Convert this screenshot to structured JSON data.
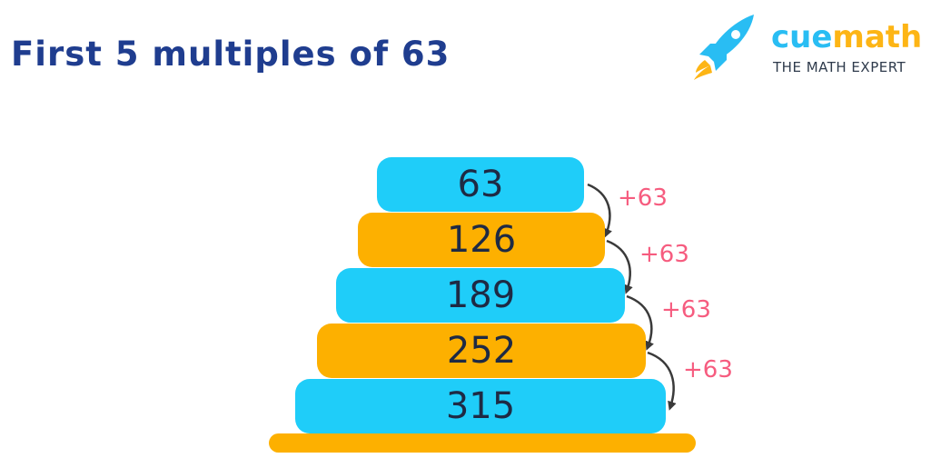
{
  "title": "First 5 multiples of 63",
  "logo": {
    "brand_cue": "cue",
    "brand_math": "math",
    "tagline": "THE MATH EXPERT",
    "icon": "rocket-icon"
  },
  "multiples": [
    {
      "value": "63",
      "color": "#1fcdf9"
    },
    {
      "value": "126",
      "color": "#fdb000"
    },
    {
      "value": "189",
      "color": "#1fcdf9"
    },
    {
      "value": "252",
      "color": "#fdb000"
    },
    {
      "value": "315",
      "color": "#1fcdf9"
    }
  ],
  "steps": [
    "+63",
    "+63",
    "+63",
    "+63"
  ],
  "colors": {
    "title": "#1f3d8f",
    "blue": "#1fcdf9",
    "orange": "#fdb000",
    "step_label": "#f65c7f",
    "arrow": "#3a3a3a"
  }
}
